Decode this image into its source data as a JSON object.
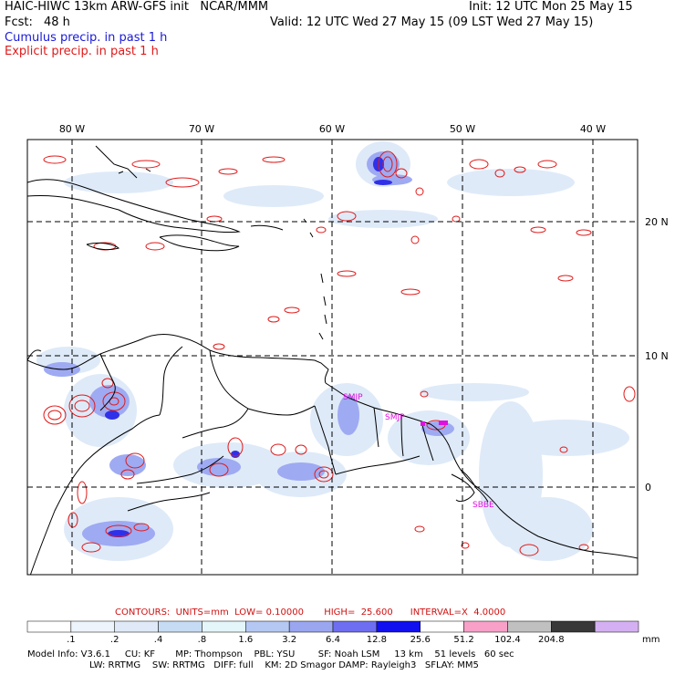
{
  "header": {
    "title": "HAIC-HIWC 13km ARW-GFS init   NCAR/MMM",
    "init": "Init: 12 UTC Mon 25 May 15",
    "fcst_label": "Fcst:",
    "fcst_value": "48 h",
    "valid": "Valid: 12 UTC Wed 27 May 15 (09 LST Wed 27 May 15)",
    "legend_cumulus": "Cumulus precip. in past 1 h",
    "legend_explicit": "Explicit precip. in past 1 h"
  },
  "map": {
    "lon_labels": [
      "80 W",
      "70 W",
      "60 W",
      "50 W",
      "40 W"
    ],
    "lat_labels": [
      "20 N",
      "10 N",
      "0"
    ],
    "stations": [
      "SMJP",
      "SMJP",
      "SBBE"
    ],
    "colors": {
      "coast": "#000000",
      "grid": "#000000",
      "contour": "#e01a1a",
      "station": "#e010e0"
    }
  },
  "contour_info": {
    "text": "CONTOURS:  UNITS=mm  LOW= 0.10000       HIGH=  25.600      INTERVAL=X  4.0000"
  },
  "colorbar": {
    "labels": [
      ".1",
      ".2",
      ".4",
      ".8",
      "1.6",
      "3.2",
      "6.4",
      "12.8",
      "25.6",
      "51.2",
      "102.4",
      "204.8"
    ],
    "unit": "mm",
    "colors": [
      "#ffffff",
      "#eef4fb",
      "#dfe9f7",
      "#c6dcf5",
      "#e4f6fa",
      "#b4c8f3",
      "#9aa6f0",
      "#6e6ef2",
      "#1010f0",
      "#ffffff",
      "#f8a0c8",
      "#c0c0c0",
      "#383838",
      "#d4b0f2"
    ]
  },
  "model_info": {
    "line1": "Model Info: V3.6.1     CU: KF       MP: Thompson    PBL: YSU        SF: Noah LSM     13 km    51 levels   60 sec",
    "line2": "LW: RRTMG    SW: RRTMG   DIFF: full    KM: 2D Smagor DAMP: Rayleigh3   SFLAY: MM5"
  }
}
